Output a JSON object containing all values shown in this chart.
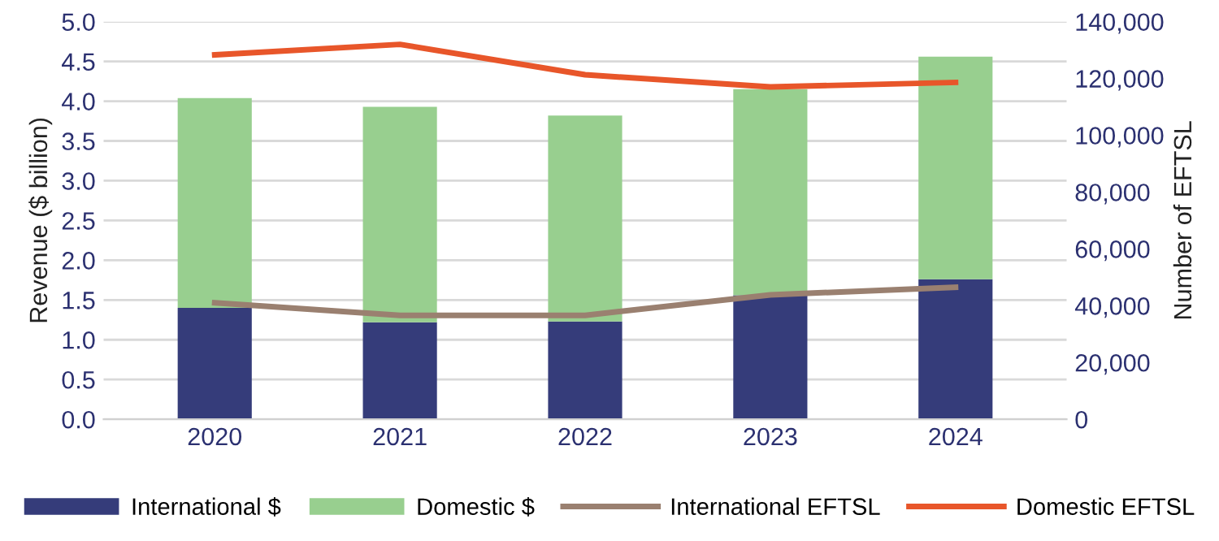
{
  "chart_data": {
    "type": "bar",
    "stacked": true,
    "categories": [
      "2020",
      "2021",
      "2022",
      "2023",
      "2024"
    ],
    "ylabel": "Revenue ($ billion)",
    "y2label": "Number of EFTSL",
    "ylim": [
      0,
      5
    ],
    "yticks": [
      {
        "value": 0,
        "label": "0.0"
      },
      {
        "value": 0.5,
        "label": "0.5"
      },
      {
        "value": 1,
        "label": "1.0"
      },
      {
        "value": 1.5,
        "label": "1.5"
      },
      {
        "value": 2,
        "label": "2.0"
      },
      {
        "value": 2.5,
        "label": "2.5"
      },
      {
        "value": 3,
        "label": "3.0"
      },
      {
        "value": 3.5,
        "label": "3.5"
      },
      {
        "value": 4,
        "label": "4.0"
      },
      {
        "value": 4.5,
        "label": "4.5"
      },
      {
        "value": 5,
        "label": "5.0"
      }
    ],
    "y2lim": [
      0,
      140000
    ],
    "y2ticks": [
      0,
      {
        "value": 20000,
        "label": "20,000"
      },
      {
        "value": 40000,
        "label": "40,000"
      },
      {
        "value": 60000,
        "label": "60,000"
      },
      {
        "value": 80000,
        "label": "80,000"
      },
      {
        "value": 100000,
        "label": "100,000"
      },
      {
        "value": 120000,
        "label": "120,000"
      },
      {
        "value": 140000,
        "label": "140,000"
      }
    ],
    "grid": "y",
    "legend": "bottom",
    "series": [
      {
        "name": "International $",
        "color": "#353c7a",
        "values": [
          1.4,
          1.22,
          1.23,
          1.56,
          1.76
        ]
      },
      {
        "name": "Domestic $",
        "color": "#98cf8f",
        "values": [
          2.64,
          2.71,
          2.59,
          2.59,
          2.8
        ]
      },
      {
        "name": "International EFTSL",
        "type": "line",
        "axis": "y2",
        "color": "#9a8070",
        "values": [
          41000,
          36600,
          36600,
          43800,
          46500
        ]
      },
      {
        "name": "Domestic EFTSL",
        "type": "line",
        "axis": "y2",
        "color": "#e8562a",
        "values": [
          128300,
          132000,
          121300,
          117000,
          118600
        ]
      }
    ]
  }
}
